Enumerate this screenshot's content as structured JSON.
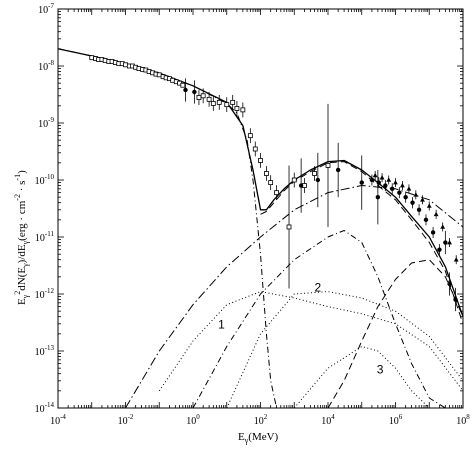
{
  "chart_data": {
    "type": "line",
    "title": "",
    "xlabel": "E_γ(MeV)",
    "xlabel_parts": {
      "base": "E",
      "sub": "γ",
      "rest": "(MeV)"
    },
    "ylabel": "E_γ^2 dN(E_γ)/dE_γ (erg · cm^-2 · s^-1)",
    "ylabel_parts": {
      "p1": "E",
      "sub1": "γ",
      "sup1": "2",
      "p2": "dN(E",
      "sub2": "γ",
      "p3": ")/dE",
      "sub3": "γ",
      "p4": "(erg · cm",
      "sup2": "-2",
      "p5": " · s",
      "sup3": "-1",
      "p6": ")"
    },
    "x_scale": "log",
    "y_scale": "log",
    "xlim": [
      0.0001,
      100000000
    ],
    "ylim": [
      1e-14,
      1e-07
    ],
    "x_ticks": [
      {
        "value": 0.0001,
        "base": "10",
        "exp": "-4"
      },
      {
        "value": 0.01,
        "base": "10",
        "exp": "-2"
      },
      {
        "value": 1,
        "base": "10",
        "exp": "0"
      },
      {
        "value": 100,
        "base": "10",
        "exp": "2"
      },
      {
        "value": 10000,
        "base": "10",
        "exp": "4"
      },
      {
        "value": 1000000,
        "base": "10",
        "exp": "6"
      },
      {
        "value": 100000000,
        "base": "10",
        "exp": "8"
      }
    ],
    "y_ticks": [
      {
        "value": 1e-14,
        "base": "10",
        "exp": "-14"
      },
      {
        "value": 1e-13,
        "base": "10",
        "exp": "-13"
      },
      {
        "value": 1e-12,
        "base": "10",
        "exp": "-12"
      },
      {
        "value": 1e-11,
        "base": "10",
        "exp": "-11"
      },
      {
        "value": 1e-10,
        "base": "10",
        "exp": "-10"
      },
      {
        "value": 1e-09,
        "base": "10",
        "exp": "-9"
      },
      {
        "value": 1e-08,
        "base": "10",
        "exp": "-8"
      },
      {
        "value": 1e-07,
        "base": "10",
        "exp": "-7"
      }
    ],
    "grid": false,
    "legend": "none",
    "series": [
      {
        "style": "solid",
        "width": 1.3,
        "x": [
          0.0001,
          0.001,
          0.01,
          0.1,
          1,
          10,
          30,
          60,
          100,
          150,
          250,
          500,
          1000,
          3000,
          10000,
          30000,
          100000,
          300000,
          1000000,
          3000000,
          10000000,
          30000000,
          100000000
        ],
        "y": [
          2e-08,
          1.5e-08,
          1.1e-08,
          7.5e-09,
          4.5e-09,
          2.3e-09,
          9e-10,
          1.5e-10,
          3e-11,
          3e-11,
          4.5e-11,
          7e-11,
          1e-10,
          1.5e-10,
          2.1e-10,
          2.2e-10,
          1.5e-10,
          9e-11,
          5e-11,
          2.3e-11,
          1e-11,
          3e-12,
          4e-13
        ]
      },
      {
        "style": "dashed",
        "width": 1,
        "x": [
          100,
          150,
          250,
          500,
          1000,
          3000,
          10000,
          30000,
          100000,
          300000,
          1000000,
          3000000,
          10000000,
          30000000,
          100000000
        ],
        "y": [
          2.5e-11,
          2.8e-11,
          4e-11,
          6.5e-11,
          9.5e-11,
          1.4e-10,
          2e-10,
          2.1e-10,
          1.4e-10,
          8e-11,
          4.5e-11,
          2e-11,
          8e-12,
          2.5e-12,
          3e-13
        ]
      },
      {
        "style": "dashdot",
        "width": 1,
        "x": [
          0.0001,
          0.001,
          0.01,
          0.1,
          1,
          10,
          20,
          40,
          60,
          100,
          150,
          200,
          300
        ],
        "y": [
          2e-08,
          1.5e-08,
          1.1e-08,
          7.5e-09,
          4.5e-09,
          2.2e-09,
          1.5e-09,
          5e-10,
          1e-10,
          5e-12,
          2e-13,
          3e-14,
          1e-14
        ]
      },
      {
        "style": "longdashdot",
        "width": 1,
        "x": [
          0.01,
          0.1,
          1,
          10,
          100,
          1000,
          10000,
          100000,
          1000000,
          10000000,
          100000000
        ],
        "y": [
          1e-14,
          1e-13,
          6.5e-13,
          3e-12,
          1e-11,
          3e-11,
          6e-11,
          8e-11,
          7e-11,
          4.5e-11,
          1.5e-11
        ]
      },
      {
        "style": "dashdot",
        "width": 1,
        "x": [
          1,
          10,
          100,
          1000,
          10000,
          30000,
          100000,
          300000,
          1000000,
          3000000,
          10000000,
          30000000
        ],
        "y": [
          1e-14,
          1.2e-13,
          1e-12,
          4e-12,
          1e-11,
          1.3e-11,
          8e-12,
          2e-12,
          3e-13,
          6e-14,
          1.5e-14,
          1e-14
        ]
      },
      {
        "style": "dashed",
        "width": 1,
        "x": [
          10000,
          30000,
          100000,
          300000,
          1000000,
          3000000,
          10000000,
          30000000,
          100000000
        ],
        "y": [
          1e-14,
          3e-14,
          1.5e-13,
          6e-13,
          1.8e-12,
          3.5e-12,
          4e-12,
          2e-12,
          4e-13
        ]
      },
      {
        "style": "dotted",
        "width": 1,
        "x": [
          0.1,
          1,
          10,
          100,
          1000,
          10000,
          100000,
          1000000,
          10000000,
          100000000
        ],
        "y": [
          2e-14,
          1.5e-13,
          6.5e-13,
          1.1e-12,
          8.5e-13,
          6e-13,
          4.5e-13,
          3e-13,
          1.2e-13,
          2e-14
        ]
      },
      {
        "style": "dotted",
        "width": 1,
        "x": [
          10,
          100,
          1000,
          10000,
          100000,
          1000000,
          10000000,
          100000000
        ],
        "y": [
          1e-14,
          2e-13,
          1e-12,
          1.1e-12,
          8.5e-13,
          5e-13,
          1.8e-13,
          3e-14
        ]
      },
      {
        "style": "dotted",
        "width": 1,
        "x": [
          1000,
          10000,
          100000,
          300000,
          1000000,
          3000000,
          10000000
        ],
        "y": [
          1e-14,
          5e-14,
          1.2e-13,
          1e-13,
          5e-14,
          2e-14,
          1e-14
        ]
      }
    ],
    "annotations": [
      {
        "text": "1",
        "x": 7,
        "y": 2.5e-13
      },
      {
        "text": "2",
        "x": 5000,
        "y": 1.1e-12
      },
      {
        "text": "3",
        "x": 350000,
        "y": 4e-14
      }
    ],
    "data_points": [
      {
        "marker": "square-open",
        "x": [
          0.001,
          0.0013,
          0.0016,
          0.002,
          0.0025,
          0.0032,
          0.004,
          0.005,
          0.0063,
          0.008,
          0.01,
          0.013,
          0.016,
          0.02,
          0.025,
          0.032,
          0.04,
          0.05,
          0.063,
          0.08,
          0.1,
          0.13,
          0.16,
          0.2,
          0.25,
          0.32,
          0.4,
          0.5
        ],
        "y": [
          1.4e-08,
          1.35e-08,
          1.3e-08,
          1.3e-08,
          1.25e-08,
          1.2e-08,
          1.2e-08,
          1.15e-08,
          1.1e-08,
          1.1e-08,
          1.05e-08,
          1e-08,
          1e-08,
          9.5e-09,
          9e-09,
          8.7e-09,
          8.5e-09,
          8e-09,
          7.6e-09,
          7.2e-09,
          7e-09,
          6.5e-09,
          6.2e-09,
          6e-09,
          5.6e-09,
          5.3e-09,
          5e-09,
          4.6e-09
        ],
        "yerr_rel": 0
      },
      {
        "marker": "circle-filled",
        "x": [
          0.6,
          1.1
        ],
        "y": [
          3.8e-09,
          3.5e-09
        ],
        "yerr_rel": 1.6
      },
      {
        "marker": "square-open",
        "x": [
          1.5,
          2,
          3,
          4,
          6,
          10,
          15,
          20,
          30,
          50,
          70,
          100,
          150,
          200,
          300,
          1000,
          2000,
          4000
        ],
        "y": [
          2.8e-09,
          3e-09,
          2.6e-09,
          2.2e-09,
          2.3e-09,
          2.1e-09,
          2.3e-09,
          1.8e-09,
          1.7e-09,
          6e-10,
          3.5e-10,
          2.2e-10,
          1.3e-10,
          9e-11,
          6e-11,
          1e-10,
          8e-11,
          1.3e-10
        ],
        "yerr_rel": 1.35
      },
      {
        "marker": "square-open",
        "x": [
          700,
          10000
        ],
        "y": [
          1.5e-11,
          1.8e-10
        ],
        "yerr_rel": 12
      },
      {
        "marker": "circle-filled",
        "x": [
          1600,
          5000,
          20000,
          100000,
          300000
        ],
        "y": [
          8e-11,
          1e-10,
          1.5e-10,
          9e-11,
          5e-11
        ],
        "yerr_rel": 3
      },
      {
        "marker": "circle-filled",
        "x": [
          200000,
          320000,
          500000,
          800000,
          1300000,
          2000000,
          3200000,
          5000000,
          8000000,
          13000000,
          20000000
        ],
        "y": [
          1e-10,
          9e-11,
          8e-11,
          7e-11,
          6e-11,
          5e-11,
          4e-11,
          3e-11,
          2e-11,
          1.2e-11,
          6e-12
        ],
        "yerr_rel": 1.25
      },
      {
        "marker": "triangle-filled",
        "x": [
          250000,
          400000,
          630000,
          1000000,
          1600000,
          2500000,
          4000000,
          6300000,
          10000000,
          16000000,
          25000000,
          40000000,
          63000000
        ],
        "y": [
          1.2e-10,
          1.1e-10,
          1e-10,
          9e-11,
          8e-11,
          7e-11,
          5.5e-11,
          4.5e-11,
          3.5e-11,
          2.5e-11,
          1.5e-11,
          8e-12,
          4e-12
        ],
        "yerr_rel": 1.2
      },
      {
        "marker": "circle-filled",
        "x": [
          30000000,
          40000000,
          60000000
        ],
        "y": [
          8e-12,
          1.5e-12,
          8e-13
        ],
        "yerr_rel": 1.6
      }
    ]
  }
}
